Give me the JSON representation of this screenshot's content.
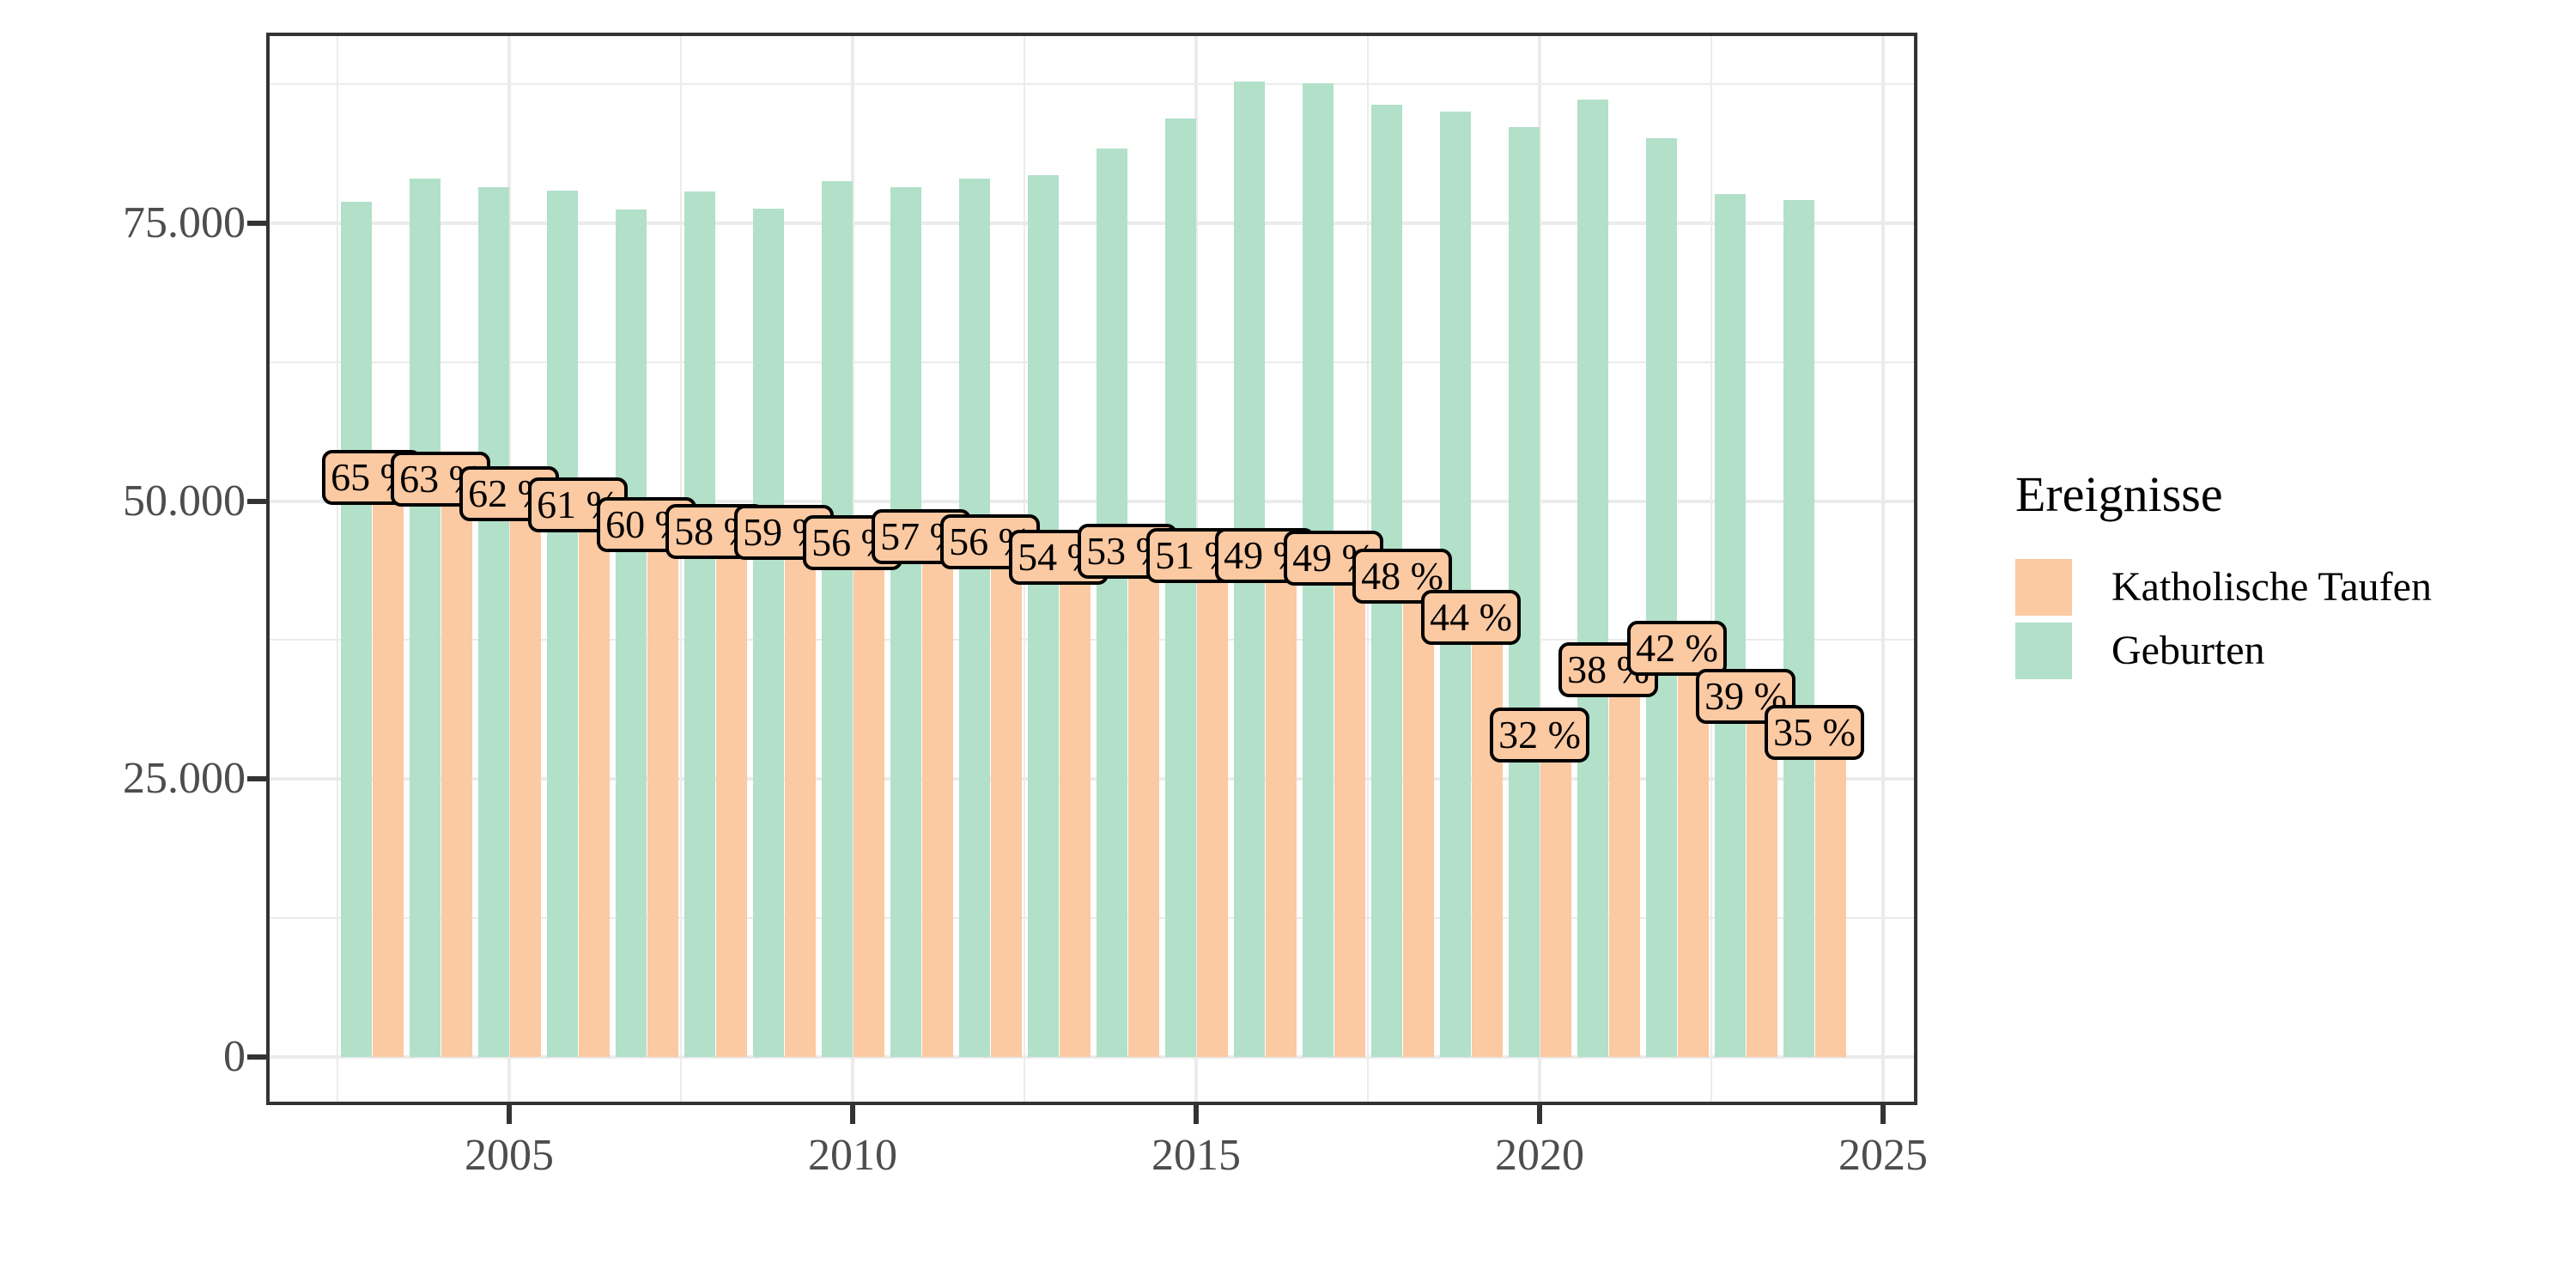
{
  "legend": {
    "title": "Ereignisse",
    "items": [
      {
        "label": "Katholische Taufen",
        "color": "#FBC9A2"
      },
      {
        "label": "Geburten",
        "color": "#B2E0C9"
      }
    ]
  },
  "colors": {
    "taufen_bar": "#FBC9A2",
    "geburten_bar": "#B2E0C9",
    "label_box_fill": "#FBC9A2",
    "label_box_border": "#000000",
    "label_text": "#000000",
    "grid": "#EBEBEB",
    "axis_text": "#4D4D4D",
    "tick_mark": "#333333",
    "panel_border": "#333333",
    "background": "#FFFFFF"
  },
  "axes": {
    "y_ticks": [
      {
        "value": 0,
        "label": "0"
      },
      {
        "value": 25000,
        "label": "25.000"
      },
      {
        "value": 50000,
        "label": "50.000"
      },
      {
        "value": 75000,
        "label": "75.000"
      }
    ],
    "y_minor_ticks": [
      12500,
      37500,
      62500,
      87500
    ],
    "x_ticks": [
      {
        "value": 2005,
        "label": "2005"
      },
      {
        "value": 2010,
        "label": "2010"
      },
      {
        "value": 2015,
        "label": "2015"
      },
      {
        "value": 2020,
        "label": "2020"
      },
      {
        "value": 2025,
        "label": "2025"
      }
    ],
    "x_minor_ticks": [
      2002.5,
      2007.5,
      2012.5,
      2017.5,
      2022.5
    ]
  },
  "chart_data": {
    "type": "bar",
    "title": "",
    "xlabel": "",
    "ylabel": "",
    "grid": true,
    "legend_position": "right",
    "legend_title": "Ereignisse",
    "ylim": [
      0,
      92000
    ],
    "xlim": [
      2002,
      2025.5
    ],
    "categories": [
      2003,
      2004,
      2005,
      2006,
      2007,
      2008,
      2009,
      2010,
      2011,
      2012,
      2013,
      2014,
      2015,
      2016,
      2017,
      2018,
      2019,
      2020,
      2021,
      2022,
      2023,
      2024
    ],
    "series": [
      {
        "name": "Geburten",
        "color": "#B2E0C9",
        "values": [
          76900,
          79000,
          78200,
          77900,
          76200,
          77800,
          76300,
          78800,
          78200,
          79000,
          79300,
          81700,
          84400,
          87700,
          87600,
          85600,
          85000,
          83600,
          86100,
          82600,
          77600,
          77100
        ]
      },
      {
        "name": "Katholische Taufen",
        "color": "#FBC9A2",
        "values": [
          50000,
          49800,
          48500,
          47500,
          45700,
          45100,
          45000,
          44100,
          44600,
          44200,
          42800,
          43300,
          42900,
          42900,
          42700,
          41100,
          37400,
          26800,
          32700,
          34600,
          30300,
          27000
        ]
      }
    ],
    "percent_labels": [
      "65 %",
      "63 %",
      "62 %",
      "61 %",
      "60 %",
      "58 %",
      "59 %",
      "56 %",
      "57 %",
      "56 %",
      "54 %",
      "53 %",
      "51 %",
      "49 %",
      "49 %",
      "48 %",
      "44 %",
      "32 %",
      "38 %",
      "42 %",
      "39 %",
      "35 %"
    ]
  }
}
